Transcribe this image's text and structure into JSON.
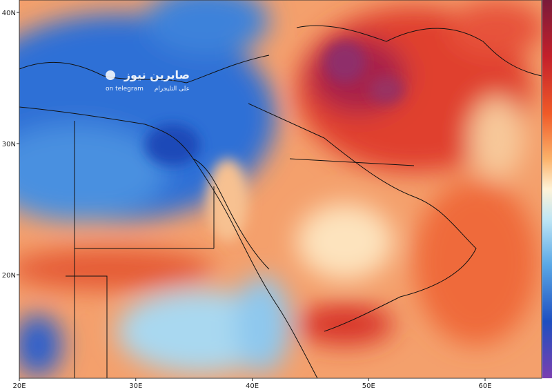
{
  "map": {
    "lat_labels": [
      "40N",
      "30N",
      "20N"
    ],
    "lon_labels": [
      "20E",
      "30E",
      "40E",
      "50E",
      "60E"
    ]
  },
  "watermark": {
    "title": "صابرين نيوز",
    "subtitle_en": "on telegram",
    "subtitle_ar": "على التليجرام"
  }
}
